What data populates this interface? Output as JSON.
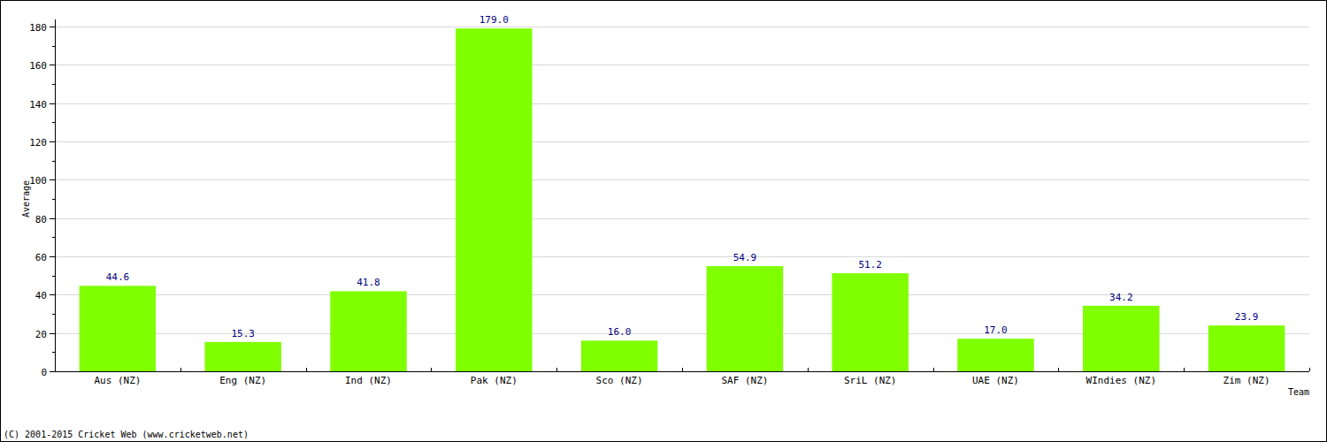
{
  "chart_data": {
    "type": "bar",
    "xlabel": "Team",
    "ylabel": "Average",
    "annotations": [
      "(C) 2001-2015 Cricket Web (www.cricketweb.net)"
    ],
    "categories": [
      "Aus (NZ)",
      "Eng (NZ)",
      "Ind (NZ)",
      "Pak (NZ)",
      "Sco (NZ)",
      "SAF (NZ)",
      "SriL (NZ)",
      "UAE (NZ)",
      "WIndies (NZ)",
      "Zim (NZ)"
    ],
    "values": [
      44.6,
      15.3,
      41.8,
      179.0,
      16.0,
      54.9,
      51.2,
      17.0,
      34.2,
      23.9
    ],
    "value_labels": [
      "44.6",
      "15.3",
      "41.8",
      "179.0",
      "16.0",
      "54.9",
      "51.2",
      "17.0",
      "34.2",
      "23.9"
    ],
    "color": "#80ff00",
    "ylim": [
      0,
      180
    ],
    "yticks": [
      0,
      20,
      40,
      60,
      80,
      100,
      120,
      140,
      160,
      180
    ],
    "grid": true,
    "data_labels": true
  }
}
